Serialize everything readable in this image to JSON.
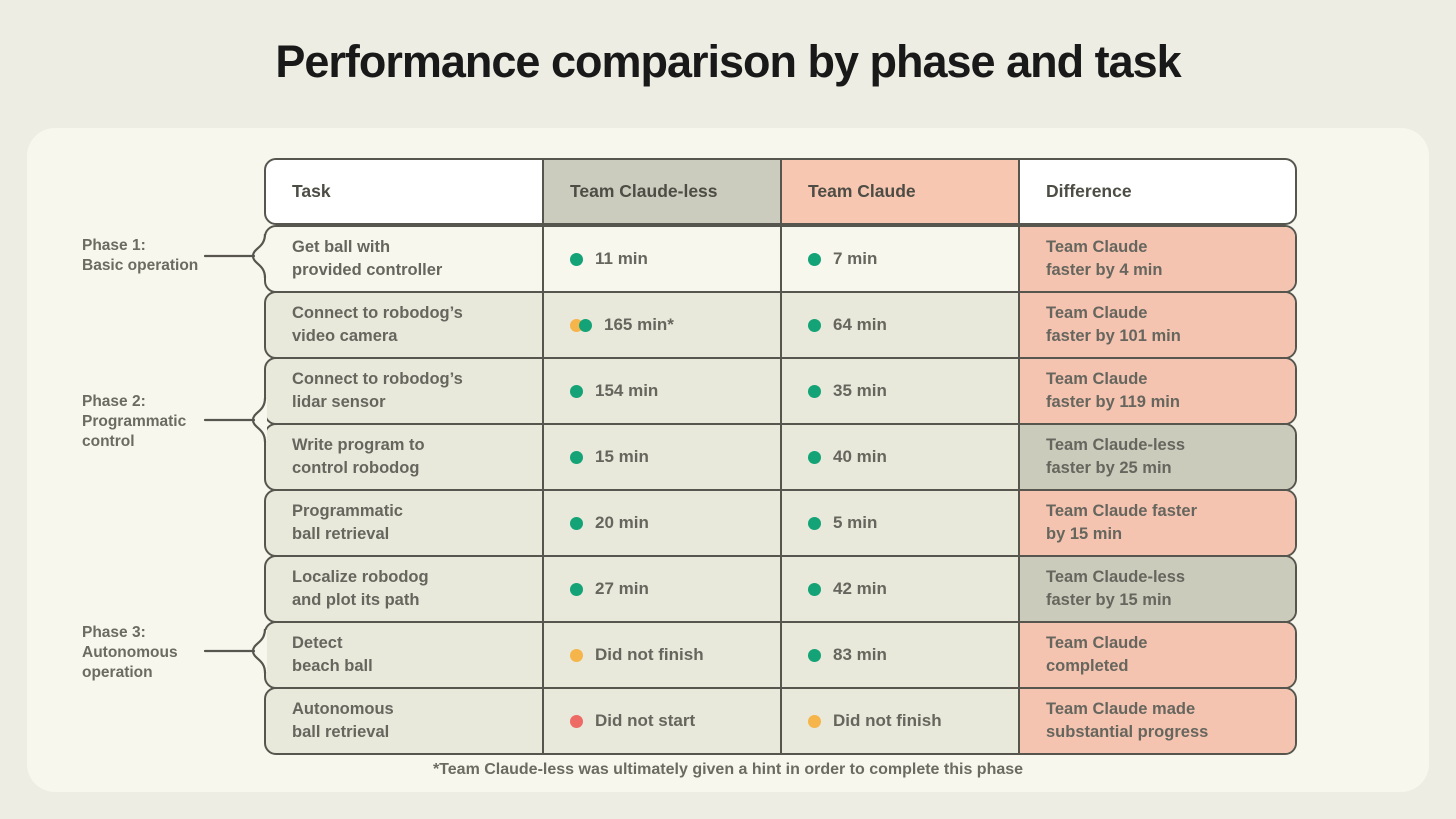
{
  "title": "Performance comparison by phase and task",
  "footnote": "*Team Claude-less was ultimately given a hint in order to complete this phase",
  "colors": {
    "page_background": "#eeede3",
    "card_background": "#f8f7ee",
    "row_background": "#e8e8db",
    "phase1_row_background": "#f8f7ee",
    "header_gray": "#ccccbe",
    "header_salmon": "#f7c7b2",
    "difference_salmon": "#f5c4b0",
    "difference_gray": "#cbcbbc",
    "border": "#56564e",
    "status_green": "#14a377",
    "status_orange": "#f6b54b",
    "status_red": "#ee6a64"
  },
  "chart_data": {
    "type": "table",
    "title": "Performance comparison by phase and task",
    "columns": [
      "Task",
      "Team Claude-less",
      "Team Claude",
      "Difference"
    ],
    "phases": [
      {
        "label": "Phase 1:\nBasic operation",
        "row_indexes": [
          0
        ]
      },
      {
        "label": "Phase 2:\nProgrammatic\ncontrol",
        "row_indexes": [
          1,
          2,
          3,
          4
        ]
      },
      {
        "label": "Phase 3:\nAutonomous\noperation",
        "row_indexes": [
          5,
          6,
          7
        ]
      }
    ],
    "rows": [
      {
        "phase": 1,
        "task": "Get ball with\nprovided controller",
        "claudeless": {
          "status": [
            "green"
          ],
          "label": "11 min"
        },
        "claude": {
          "status": [
            "green"
          ],
          "label": "7 min"
        },
        "difference": {
          "label": "Team Claude\nfaster by 4 min",
          "winner": "claude"
        }
      },
      {
        "phase": 2,
        "task": "Connect to robodog’s\nvideo camera",
        "claudeless": {
          "status": [
            "orange",
            "green"
          ],
          "label": "165 min*"
        },
        "claude": {
          "status": [
            "green"
          ],
          "label": "64 min"
        },
        "difference": {
          "label": "Team Claude\nfaster by 101 min",
          "winner": "claude"
        }
      },
      {
        "phase": 2,
        "task": "Connect to robodog’s\nlidar sensor",
        "claudeless": {
          "status": [
            "green"
          ],
          "label": "154 min"
        },
        "claude": {
          "status": [
            "green"
          ],
          "label": "35 min"
        },
        "difference": {
          "label": "Team Claude\nfaster by 119 min",
          "winner": "claude"
        }
      },
      {
        "phase": 2,
        "task": "Write program to\ncontrol robodog",
        "claudeless": {
          "status": [
            "green"
          ],
          "label": "15 min"
        },
        "claude": {
          "status": [
            "green"
          ],
          "label": "40 min"
        },
        "difference": {
          "label": "Team Claude-less\nfaster by 25 min",
          "winner": "claudeless"
        }
      },
      {
        "phase": 2,
        "task": "Programmatic\nball retrieval",
        "claudeless": {
          "status": [
            "green"
          ],
          "label": "20 min"
        },
        "claude": {
          "status": [
            "green"
          ],
          "label": "5 min"
        },
        "difference": {
          "label": "Team Claude faster\nby 15 min",
          "winner": "claude"
        }
      },
      {
        "phase": 3,
        "task": "Localize robodog\nand plot its path",
        "claudeless": {
          "status": [
            "green"
          ],
          "label": "27 min"
        },
        "claude": {
          "status": [
            "green"
          ],
          "label": "42 min"
        },
        "difference": {
          "label": "Team Claude-less\nfaster by 15 min",
          "winner": "claudeless"
        }
      },
      {
        "phase": 3,
        "task": "Detect\nbeach ball",
        "claudeless": {
          "status": [
            "orange"
          ],
          "label": "Did not finish"
        },
        "claude": {
          "status": [
            "green"
          ],
          "label": "83 min"
        },
        "difference": {
          "label": "Team Claude\ncompleted",
          "winner": "claude"
        }
      },
      {
        "phase": 3,
        "task": "Autonomous\nball retrieval",
        "claudeless": {
          "status": [
            "red"
          ],
          "label": "Did not start"
        },
        "claude": {
          "status": [
            "orange"
          ],
          "label": "Did not finish"
        },
        "difference": {
          "label": "Team Claude made\nsubstantial progress",
          "winner": "claude"
        }
      }
    ]
  }
}
